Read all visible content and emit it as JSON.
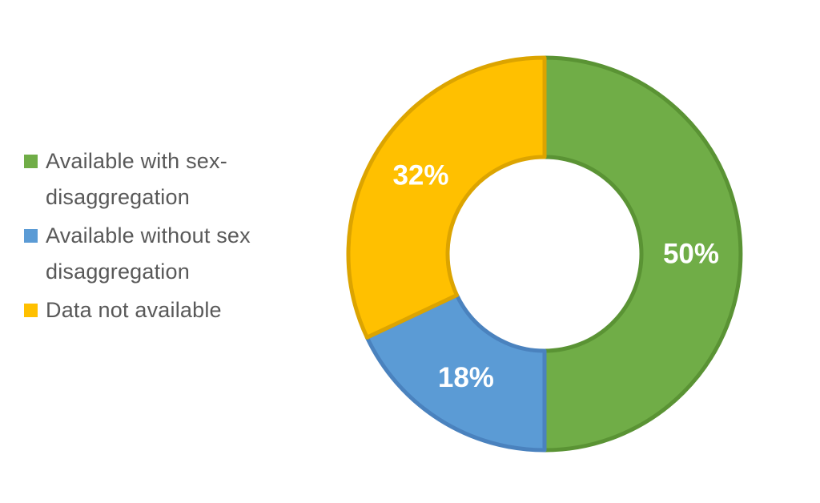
{
  "chart_data": {
    "type": "donut",
    "title": "",
    "categories": [
      "Available with sex-disaggregation",
      "Available without sex disaggregation",
      "Data not available"
    ],
    "values": [
      50,
      18,
      32
    ],
    "unit": "%",
    "start_angle_deg": 0,
    "direction": "clockwise",
    "hole_ratio": 0.49,
    "legend_position": "left",
    "label_color": "#FFFFFF",
    "slices": [
      {
        "id": "available-with-sex-disaggregation",
        "label": "Available with sex-disaggregation",
        "value": 50,
        "display": "50%",
        "color": "#70AD47",
        "border_color": "#5A9334"
      },
      {
        "id": "available-without-sex-disaggregation",
        "label": "Available without sex disaggregation",
        "value": 18,
        "display": "18%",
        "color": "#5B9BD5",
        "border_color": "#4A82BE"
      },
      {
        "id": "data-not-available",
        "label": "Data not available",
        "value": 32,
        "display": "32%",
        "color": "#FFC000",
        "border_color": "#DCA400"
      }
    ]
  },
  "legend": {
    "text_color": "#595959",
    "items": [
      {
        "id": "available-with-sex-disaggregation",
        "color": "#70AD47",
        "lines": [
          "Available with sex-",
          "disaggregation"
        ]
      },
      {
        "id": "available-without-sex-disaggregation",
        "color": "#5B9BD5",
        "lines": [
          "Available without sex",
          "disaggregation"
        ]
      },
      {
        "id": "data-not-available",
        "color": "#FFC000",
        "lines": [
          "Data not available"
        ]
      }
    ]
  }
}
